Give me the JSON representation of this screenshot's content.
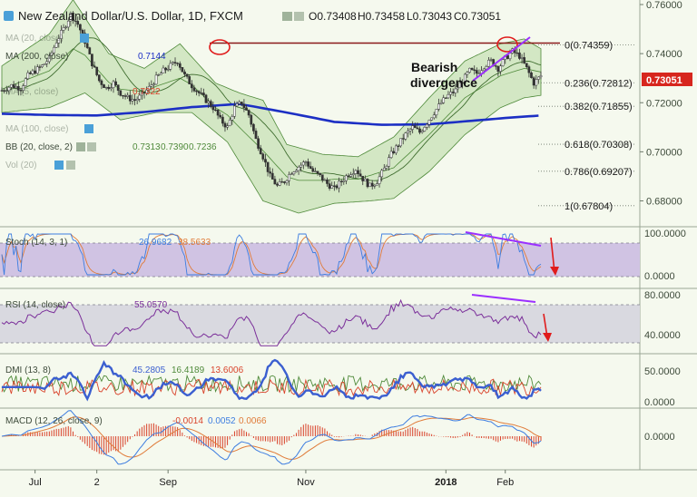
{
  "header": {
    "title": "New Zealand Dollar/U.S. Dollar, 1D, FXCM",
    "ohlc": [
      "O0.73408",
      "H0.73458",
      "L0.73043",
      "C0.73051"
    ]
  },
  "colors": {
    "background": "#f5f9ee",
    "up_candle": "#ffffff",
    "down_candle": "#333333",
    "bb_fill": "#c7e0b6",
    "ma200": "#1c2fc4",
    "fib_line": "#8b1a1a",
    "divergence": "#9b30ff",
    "arrow": "#e01b1b",
    "stoch_k": "#3d7de0",
    "stoch_d": "#e07b39",
    "stoch_band": "#d0c3e3",
    "rsi_line": "#7b2f9a",
    "rsi_band": "#d9d9e0",
    "dmi_plus": "#4f8a3a",
    "dmi_minus": "#d9442c",
    "adx": "#3b5fd0",
    "macd_line": "#3d7de0",
    "macd_signal": "#e07b39",
    "macd_hist": "#d9442c",
    "price_badge": "#d7261e"
  },
  "indicators": {
    "legend_1": {
      "label": "MA (20, close)",
      "value": ""
    },
    "legend_2": {
      "label": "MA (200, close)",
      "value": "0.7144"
    },
    "legend_3": {
      "label": "MA (5, close)",
      "value": "0.7322"
    },
    "legend_4": {
      "label": "",
      "value": ""
    },
    "legend_5": {
      "label": "MA (100, close)",
      "value": ""
    },
    "legend_6": {
      "label": "BB (20, close, 2)",
      "values": [
        "0.7313",
        "0.7390",
        "0.7236"
      ]
    },
    "legend_7": {
      "label": "Vol (20)",
      "value": ""
    }
  },
  "annotations": {
    "divergence_label_1": "Bearish",
    "divergence_label_2": "divergence"
  },
  "price_badge": "0.73051",
  "panes": {
    "stoch": {
      "label": "Stoch (14, 3, 1)",
      "k": "26.9682",
      "d": "38.5633"
    },
    "rsi": {
      "label": "RSI (14, close)",
      "value": "55.0570"
    },
    "dmi": {
      "label": "DMI (13, 8)",
      "values": [
        "45.2805",
        "16.4189",
        "13.6006"
      ]
    },
    "macd": {
      "label": "MACD (12, 26, close, 9)",
      "values": [
        "-0.0014",
        "0.0052",
        "0.0066"
      ]
    }
  },
  "chart_data": {
    "type": "line",
    "title": "New Zealand Dollar/U.S. Dollar, 1D, FXCM",
    "xlabel": "",
    "ylabel": "",
    "ylim": [
      0.672,
      0.762
    ],
    "x_ticks": [
      "Jul",
      "2",
      "Sep",
      "Nov",
      "2018",
      "Feb"
    ],
    "y_ticks": [
      "0.76000",
      "0.74000",
      "0.72000",
      "0.70000",
      "0.68000"
    ],
    "fib_levels": [
      {
        "label": "0(0.74359)",
        "value": 0.74359
      },
      {
        "label": "0.236(0.72812)",
        "value": 0.72812
      },
      {
        "label": "0.382(0.71855)",
        "value": 0.71855
      },
      {
        "label": "0.618(0.70308)",
        "value": 0.70308
      },
      {
        "label": "0.786(0.69207)",
        "value": 0.69207
      },
      {
        "label": "1(0.67804)",
        "value": 0.67804
      }
    ],
    "resistance": 0.7443,
    "close_path": [
      [
        0,
        0.725
      ],
      [
        4,
        0.727
      ],
      [
        8,
        0.726
      ],
      [
        11,
        0.731
      ],
      [
        14,
        0.733
      ],
      [
        17,
        0.735
      ],
      [
        20,
        0.738
      ],
      [
        23,
        0.745
      ],
      [
        26,
        0.75
      ],
      [
        29,
        0.756
      ],
      [
        32,
        0.752
      ],
      [
        35,
        0.745
      ],
      [
        38,
        0.736
      ],
      [
        41,
        0.729
      ],
      [
        44,
        0.726
      ],
      [
        47,
        0.728
      ],
      [
        50,
        0.724
      ],
      [
        53,
        0.722
      ],
      [
        56,
        0.721
      ],
      [
        59,
        0.723
      ],
      [
        62,
        0.726
      ],
      [
        65,
        0.73
      ],
      [
        68,
        0.733
      ],
      [
        71,
        0.735
      ],
      [
        74,
        0.737
      ],
      [
        77,
        0.731
      ],
      [
        80,
        0.727
      ],
      [
        83,
        0.724
      ],
      [
        86,
        0.721
      ],
      [
        89,
        0.718
      ],
      [
        92,
        0.713
      ],
      [
        95,
        0.71
      ],
      [
        98,
        0.718
      ],
      [
        101,
        0.72
      ],
      [
        104,
        0.715
      ],
      [
        107,
        0.705
      ],
      [
        110,
        0.698
      ],
      [
        113,
        0.69
      ],
      [
        116,
        0.686
      ],
      [
        119,
        0.688
      ],
      [
        122,
        0.692
      ],
      [
        125,
        0.694
      ],
      [
        128,
        0.696
      ],
      [
        131,
        0.692
      ],
      [
        134,
        0.69
      ],
      [
        137,
        0.687
      ],
      [
        140,
        0.685
      ],
      [
        143,
        0.688
      ],
      [
        146,
        0.691
      ],
      [
        149,
        0.693
      ],
      [
        152,
        0.689
      ],
      [
        155,
        0.686
      ],
      [
        158,
        0.688
      ],
      [
        161,
        0.693
      ],
      [
        164,
        0.699
      ],
      [
        167,
        0.703
      ],
      [
        170,
        0.707
      ],
      [
        173,
        0.71
      ],
      [
        176,
        0.708
      ],
      [
        179,
        0.712
      ],
      [
        182,
        0.716
      ],
      [
        185,
        0.72
      ],
      [
        188,
        0.723
      ],
      [
        191,
        0.725
      ],
      [
        194,
        0.729
      ],
      [
        197,
        0.733
      ],
      [
        200,
        0.732
      ],
      [
        203,
        0.735
      ],
      [
        206,
        0.737
      ],
      [
        209,
        0.734
      ],
      [
        212,
        0.738
      ],
      [
        215,
        0.741
      ],
      [
        218,
        0.739
      ],
      [
        221,
        0.734
      ],
      [
        224,
        0.728
      ],
      [
        227,
        0.731
      ]
    ],
    "ma200_path": [
      [
        0,
        0.7155
      ],
      [
        20,
        0.715
      ],
      [
        40,
        0.7148
      ],
      [
        60,
        0.7162
      ],
      [
        80,
        0.7182
      ],
      [
        100,
        0.7195
      ],
      [
        120,
        0.716
      ],
      [
        140,
        0.7122
      ],
      [
        160,
        0.711
      ],
      [
        180,
        0.7112
      ],
      [
        200,
        0.7128
      ],
      [
        215,
        0.714
      ],
      [
        227,
        0.7148
      ]
    ],
    "bb_upper_path": [
      [
        0,
        0.735
      ],
      [
        20,
        0.748
      ],
      [
        30,
        0.762
      ],
      [
        45,
        0.74
      ],
      [
        60,
        0.734
      ],
      [
        75,
        0.744
      ],
      [
        90,
        0.728
      ],
      [
        100,
        0.724
      ],
      [
        110,
        0.721
      ],
      [
        120,
        0.703
      ],
      [
        135,
        0.699
      ],
      [
        150,
        0.698
      ],
      [
        165,
        0.706
      ],
      [
        180,
        0.722
      ],
      [
        195,
        0.737
      ],
      [
        210,
        0.744
      ],
      [
        220,
        0.746
      ],
      [
        227,
        0.742
      ]
    ],
    "bb_lower_path": [
      [
        0,
        0.716
      ],
      [
        20,
        0.718
      ],
      [
        35,
        0.724
      ],
      [
        50,
        0.713
      ],
      [
        65,
        0.716
      ],
      [
        80,
        0.716
      ],
      [
        95,
        0.704
      ],
      [
        110,
        0.68
      ],
      [
        125,
        0.675
      ],
      [
        140,
        0.679
      ],
      [
        155,
        0.68
      ],
      [
        165,
        0.681
      ],
      [
        180,
        0.692
      ],
      [
        195,
        0.707
      ],
      [
        210,
        0.718
      ],
      [
        220,
        0.722
      ],
      [
        227,
        0.723
      ]
    ]
  }
}
